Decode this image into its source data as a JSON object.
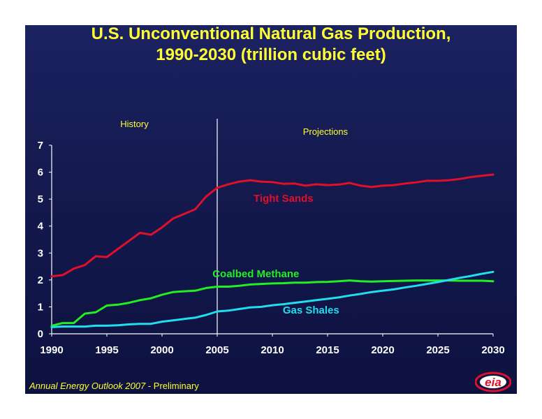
{
  "title_line1": "U.S. Unconventional Natural Gas Production,",
  "title_line2": "1990-2030 (trillion cubic feet)",
  "regions": {
    "history": "History",
    "projections": "Projections"
  },
  "footer": {
    "publication": "Annual Energy Outlook 2007",
    "suffix": " - Preliminary"
  },
  "logo": {
    "text": "eia",
    "icon": "eia-logo"
  },
  "colors": {
    "background": "#14194e",
    "title": "#ffff33",
    "tight_sands": "#e0102a",
    "coalbed_methane": "#22ee22",
    "gas_shales": "#22ddee",
    "divider": "#ffffff"
  },
  "chart_data": {
    "type": "line",
    "title": "U.S. Unconventional Natural Gas Production, 1990-2030 (trillion cubic feet)",
    "xlabel": "",
    "ylabel": "",
    "xlim": [
      1990,
      2030
    ],
    "ylim": [
      0,
      7
    ],
    "x_ticks": [
      1990,
      1995,
      2000,
      2005,
      2010,
      2015,
      2020,
      2025,
      2030
    ],
    "y_ticks": [
      0,
      1,
      2,
      3,
      4,
      5,
      6,
      7
    ],
    "divider_year": 2005,
    "grid": false,
    "legend": "inline labels",
    "x": [
      1990,
      1991,
      1992,
      1993,
      1994,
      1995,
      1996,
      1997,
      1998,
      1999,
      2000,
      2001,
      2002,
      2003,
      2004,
      2005,
      2006,
      2007,
      2008,
      2009,
      2010,
      2011,
      2012,
      2013,
      2014,
      2015,
      2016,
      2017,
      2018,
      2019,
      2020,
      2021,
      2022,
      2023,
      2024,
      2025,
      2026,
      2027,
      2028,
      2029,
      2030
    ],
    "series": [
      {
        "name": "Tight Sands",
        "color": "#e0102a",
        "values": [
          2.13,
          2.18,
          2.42,
          2.55,
          2.88,
          2.85,
          3.15,
          3.45,
          3.75,
          3.68,
          3.95,
          4.28,
          4.45,
          4.62,
          5.1,
          5.42,
          5.55,
          5.65,
          5.7,
          5.65,
          5.63,
          5.57,
          5.58,
          5.5,
          5.55,
          5.52,
          5.54,
          5.6,
          5.5,
          5.45,
          5.5,
          5.52,
          5.58,
          5.62,
          5.68,
          5.68,
          5.7,
          5.75,
          5.82,
          5.87,
          5.91
        ]
      },
      {
        "name": "Coalbed Methane",
        "color": "#22ee22",
        "values": [
          0.3,
          0.4,
          0.4,
          0.75,
          0.8,
          1.05,
          1.08,
          1.15,
          1.25,
          1.32,
          1.45,
          1.55,
          1.58,
          1.6,
          1.7,
          1.75,
          1.75,
          1.78,
          1.83,
          1.85,
          1.87,
          1.88,
          1.9,
          1.9,
          1.92,
          1.93,
          1.95,
          1.98,
          1.95,
          1.94,
          1.95,
          1.96,
          1.97,
          1.98,
          1.98,
          1.98,
          1.98,
          1.97,
          1.97,
          1.97,
          1.95
        ]
      },
      {
        "name": "Gas Shales",
        "color": "#22ddee",
        "values": [
          0.25,
          0.27,
          0.27,
          0.27,
          0.3,
          0.3,
          0.32,
          0.35,
          0.37,
          0.37,
          0.45,
          0.5,
          0.55,
          0.6,
          0.7,
          0.83,
          0.86,
          0.92,
          0.98,
          1.0,
          1.06,
          1.1,
          1.15,
          1.2,
          1.25,
          1.3,
          1.35,
          1.42,
          1.48,
          1.55,
          1.6,
          1.65,
          1.72,
          1.78,
          1.85,
          1.92,
          2.0,
          2.08,
          2.15,
          2.23,
          2.3
        ]
      }
    ]
  }
}
